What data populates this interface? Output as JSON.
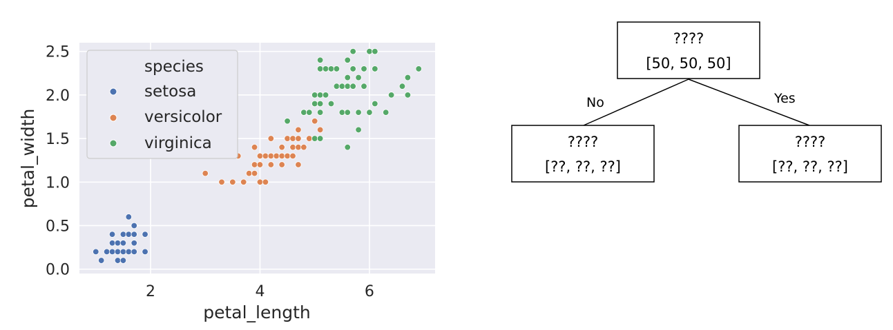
{
  "chart_data": {
    "type": "scatter",
    "xlabel": "petal_length",
    "ylabel": "petal_width",
    "xlim": [
      0.7,
      7.2
    ],
    "ylim": [
      -0.05,
      2.6
    ],
    "xticks": [
      2,
      4,
      6
    ],
    "yticks": [
      0.0,
      0.5,
      1.0,
      1.5,
      2.0,
      2.5
    ],
    "grid": true,
    "legend": {
      "title": "species",
      "placement": "upper-left"
    },
    "series": [
      {
        "name": "setosa",
        "color": "#4c72b0",
        "points": [
          [
            1.0,
            0.2
          ],
          [
            1.1,
            0.1
          ],
          [
            1.2,
            0.2
          ],
          [
            1.3,
            0.2
          ],
          [
            1.3,
            0.3
          ],
          [
            1.3,
            0.4
          ],
          [
            1.4,
            0.1
          ],
          [
            1.4,
            0.2
          ],
          [
            1.4,
            0.3
          ],
          [
            1.5,
            0.1
          ],
          [
            1.5,
            0.2
          ],
          [
            1.5,
            0.3
          ],
          [
            1.5,
            0.4
          ],
          [
            1.6,
            0.2
          ],
          [
            1.6,
            0.4
          ],
          [
            1.6,
            0.6
          ],
          [
            1.7,
            0.2
          ],
          [
            1.7,
            0.3
          ],
          [
            1.7,
            0.4
          ],
          [
            1.7,
            0.5
          ],
          [
            1.9,
            0.2
          ],
          [
            1.9,
            0.4
          ]
        ]
      },
      {
        "name": "versicolor",
        "color": "#dd8452",
        "points": [
          [
            3.0,
            1.1
          ],
          [
            3.3,
            1.0
          ],
          [
            3.5,
            1.0
          ],
          [
            3.6,
            1.3
          ],
          [
            3.7,
            1.0
          ],
          [
            3.8,
            1.1
          ],
          [
            3.9,
            1.1
          ],
          [
            3.9,
            1.2
          ],
          [
            3.9,
            1.4
          ],
          [
            4.0,
            1.0
          ],
          [
            4.0,
            1.2
          ],
          [
            4.0,
            1.3
          ],
          [
            4.1,
            1.0
          ],
          [
            4.1,
            1.3
          ],
          [
            4.2,
            1.2
          ],
          [
            4.2,
            1.3
          ],
          [
            4.2,
            1.5
          ],
          [
            4.3,
            1.3
          ],
          [
            4.4,
            1.2
          ],
          [
            4.4,
            1.3
          ],
          [
            4.4,
            1.4
          ],
          [
            4.5,
            1.3
          ],
          [
            4.5,
            1.5
          ],
          [
            4.6,
            1.3
          ],
          [
            4.6,
            1.4
          ],
          [
            4.6,
            1.5
          ],
          [
            4.7,
            1.2
          ],
          [
            4.7,
            1.4
          ],
          [
            4.7,
            1.5
          ],
          [
            4.7,
            1.6
          ],
          [
            4.8,
            1.4
          ],
          [
            4.8,
            1.8
          ],
          [
            4.9,
            1.5
          ],
          [
            5.0,
            1.7
          ],
          [
            5.1,
            1.6
          ]
        ]
      },
      {
        "name": "virginica",
        "color": "#55a868",
        "points": [
          [
            4.5,
            1.7
          ],
          [
            4.8,
            1.8
          ],
          [
            4.9,
            1.8
          ],
          [
            5.0,
            1.5
          ],
          [
            5.0,
            1.9
          ],
          [
            5.0,
            2.0
          ],
          [
            5.1,
            1.5
          ],
          [
            5.1,
            1.8
          ],
          [
            5.1,
            1.9
          ],
          [
            5.1,
            2.0
          ],
          [
            5.1,
            2.3
          ],
          [
            5.1,
            2.4
          ],
          [
            5.2,
            2.0
          ],
          [
            5.2,
            2.3
          ],
          [
            5.3,
            1.9
          ],
          [
            5.3,
            2.3
          ],
          [
            5.4,
            2.1
          ],
          [
            5.4,
            2.3
          ],
          [
            5.5,
            1.8
          ],
          [
            5.5,
            2.1
          ],
          [
            5.6,
            1.4
          ],
          [
            5.6,
            1.8
          ],
          [
            5.6,
            2.1
          ],
          [
            5.6,
            2.2
          ],
          [
            5.6,
            2.4
          ],
          [
            5.7,
            2.1
          ],
          [
            5.7,
            2.3
          ],
          [
            5.7,
            2.5
          ],
          [
            5.8,
            1.6
          ],
          [
            5.8,
            1.8
          ],
          [
            5.8,
            2.2
          ],
          [
            5.9,
            2.1
          ],
          [
            5.9,
            2.3
          ],
          [
            6.0,
            1.8
          ],
          [
            6.0,
            2.5
          ],
          [
            6.1,
            1.9
          ],
          [
            6.1,
            2.3
          ],
          [
            6.1,
            2.5
          ],
          [
            6.3,
            1.8
          ],
          [
            6.4,
            2.0
          ],
          [
            6.6,
            2.1
          ],
          [
            6.7,
            2.0
          ],
          [
            6.7,
            2.2
          ],
          [
            6.9,
            2.3
          ]
        ]
      }
    ]
  },
  "tree": {
    "root": {
      "title": "????",
      "counts": "[50, 50, 50]"
    },
    "left": {
      "title": "????",
      "counts": "[??, ??, ??]"
    },
    "right": {
      "title": "????",
      "counts": "[??, ??, ??]"
    },
    "edge_left_label": "No",
    "edge_right_label": "Yes"
  }
}
